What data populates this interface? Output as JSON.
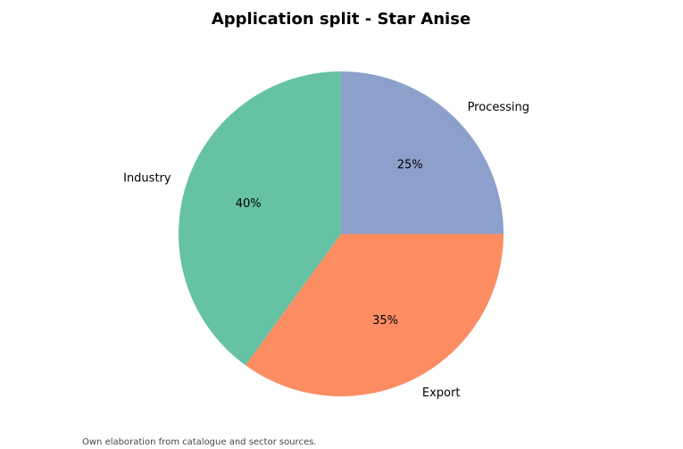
{
  "chart_data": {
    "type": "pie",
    "title": "Application split - Star Anise",
    "categories": [
      "Industry",
      "Export",
      "Processing"
    ],
    "values": [
      40,
      35,
      25
    ],
    "value_labels": [
      "40%",
      "35%",
      "25%"
    ],
    "colors": [
      "#66c2a5",
      "#fc8d62",
      "#8da0cb"
    ],
    "footnote": "Own elaboration from catalogue and sector sources."
  }
}
